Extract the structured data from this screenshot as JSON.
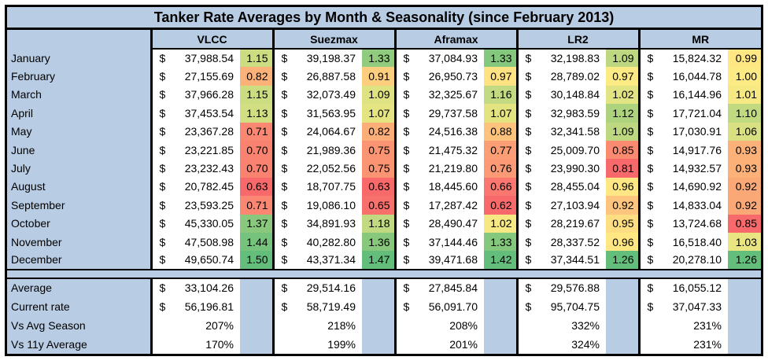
{
  "chart_data": {
    "type": "table",
    "title": "Tanker Rate Averages by Month & Seasonality (since February 2013)",
    "columns": [
      "VLCC",
      "Suezmax",
      "Aframax",
      "LR2",
      "MR"
    ],
    "months": [
      "January",
      "February",
      "March",
      "April",
      "May",
      "June",
      "July",
      "August",
      "September",
      "October",
      "November",
      "December"
    ],
    "currency_symbol": "$",
    "series": [
      {
        "name": "VLCC",
        "values": [
          "37,988.54",
          "27,155.69",
          "37,966.28",
          "37,453.54",
          "23,367.28",
          "23,221.85",
          "23,232.43",
          "20,782.45",
          "23,593.25",
          "45,330.05",
          "47,508.98",
          "49,650.74"
        ],
        "factors": [
          "1.15",
          "0.82",
          "1.15",
          "1.13",
          "0.71",
          "0.70",
          "0.70",
          "0.63",
          "0.71",
          "1.37",
          "1.44",
          "1.50"
        ]
      },
      {
        "name": "Suezmax",
        "values": [
          "39,198.37",
          "26,887.58",
          "32,073.49",
          "31,563.95",
          "24,064.67",
          "21,989.36",
          "22,052.56",
          "18,707.75",
          "19,086.10",
          "34,891.93",
          "40,282.80",
          "43,371.34"
        ],
        "factors": [
          "1.33",
          "0.91",
          "1.09",
          "1.07",
          "0.82",
          "0.75",
          "0.75",
          "0.63",
          "0.65",
          "1.18",
          "1.36",
          "1.47"
        ]
      },
      {
        "name": "Aframax",
        "values": [
          "37,084.93",
          "26,950.73",
          "32,325.67",
          "29,737.58",
          "24,516.38",
          "21,475.32",
          "21,219.80",
          "18,445.60",
          "17,287.42",
          "28,490.47",
          "37,144.46",
          "39,471.68"
        ],
        "factors": [
          "1.33",
          "0.97",
          "1.16",
          "1.07",
          "0.88",
          "0.77",
          "0.76",
          "0.66",
          "0.62",
          "1.02",
          "1.33",
          "1.42"
        ]
      },
      {
        "name": "LR2",
        "values": [
          "32,198.83",
          "28,789.02",
          "30,148.84",
          "32,983.59",
          "32,341.58",
          "25,009.70",
          "23,990.30",
          "28,455.04",
          "27,103.94",
          "28,219.67",
          "28,337.52",
          "37,344.51"
        ],
        "factors": [
          "1.09",
          "0.97",
          "1.02",
          "1.12",
          "1.09",
          "0.85",
          "0.81",
          "0.96",
          "0.92",
          "0.95",
          "0.96",
          "1.26"
        ]
      },
      {
        "name": "MR",
        "values": [
          "15,824.32",
          "16,044.78",
          "16,144.96",
          "17,721.04",
          "17,030.91",
          "14,917.76",
          "14,932.57",
          "14,690.92",
          "14,833.04",
          "13,724.68",
          "16,518.40",
          "20,278.10"
        ],
        "factors": [
          "0.99",
          "1.00",
          "1.01",
          "1.10",
          "1.06",
          "0.93",
          "0.93",
          "0.92",
          "0.92",
          "0.85",
          "1.03",
          "1.26"
        ]
      }
    ],
    "summary_rows": [
      {
        "label": "Average",
        "currency": true,
        "values": [
          "33,104.26",
          "29,514.16",
          "27,845.84",
          "29,576.88",
          "16,055.12"
        ]
      },
      {
        "label": "Current rate",
        "currency": true,
        "values": [
          "56,196.81",
          "58,719.49",
          "56,091.70",
          "95,704.75",
          "37,047.33"
        ]
      },
      {
        "label": "Vs Avg Season",
        "currency": false,
        "values": [
          "207%",
          "218%",
          "208%",
          "332%",
          "231%"
        ]
      },
      {
        "label": "Vs 11y Average",
        "currency": false,
        "values": [
          "170%",
          "199%",
          "201%",
          "324%",
          "231%"
        ]
      }
    ]
  },
  "colors": {
    "header_blue": "#B8CCE4",
    "scale_min_red": "#F8696B",
    "scale_mid_yellow": "#FFEB84",
    "scale_max_green": "#63BE7B",
    "border": "#000000"
  }
}
